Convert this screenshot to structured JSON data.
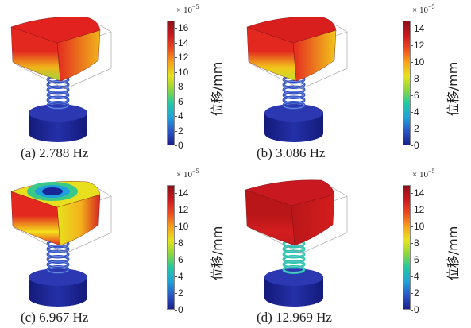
{
  "colorbar": {
    "scale_prefix": "× 10",
    "scale_exponent": "−5",
    "unit_label": "位移/mm",
    "gradient": [
      "#1a1f8c",
      "#2a57c6",
      "#1fa2d8",
      "#22c7a4",
      "#8ad640",
      "#e6e31e",
      "#f6a31b",
      "#ec4a1f",
      "#c91820",
      "#8e1119"
    ]
  },
  "panels": [
    {
      "caption": "(a) 2.788 Hz",
      "ticks": [
        "16",
        "14",
        "12",
        "10",
        "8",
        "6",
        "4",
        "2",
        "0"
      ],
      "tick_values": [
        16,
        14,
        12,
        10,
        8,
        6,
        4,
        2,
        0
      ],
      "range_max": 17,
      "mode": "tilt",
      "colors": {
        "top": "#e2221e",
        "side_top": "#e3291f",
        "side_mid": "#f0b51a",
        "side_bottom": "#9ad640",
        "spring": "#2f4fbf",
        "base": "#1a1f8c"
      }
    },
    {
      "caption": "(b) 3.086 Hz",
      "ticks": [
        "14",
        "12",
        "10",
        "8",
        "6",
        "4",
        "2",
        "0"
      ],
      "tick_values": [
        14,
        12,
        10,
        8,
        6,
        4,
        2,
        0
      ],
      "range_max": 15,
      "mode": "tilt",
      "colors": {
        "top": "#d81f1e",
        "side_top": "#e3291f",
        "side_mid": "#f2c61b",
        "side_bottom": "#c6df2a",
        "spring": "#2f4fbf",
        "base": "#1a1f8c"
      }
    },
    {
      "caption": "(c) 6.967 Hz",
      "ticks": [
        "14",
        "12",
        "10",
        "8",
        "6",
        "4",
        "2",
        "0"
      ],
      "tick_values": [
        14,
        12,
        10,
        8,
        6,
        4,
        2,
        0
      ],
      "range_max": 15,
      "mode": "twist",
      "colors": {
        "top": "#e6e31e",
        "side_top": "#e3291f",
        "side_mid": "#f5e21c",
        "side_bottom": "#e3291f",
        "spring": "#2f4fbf",
        "base": "#1a1f8c"
      }
    },
    {
      "caption": "(d) 12.969 Hz",
      "ticks": [
        "14",
        "12",
        "10",
        "8",
        "6",
        "4",
        "2",
        "0"
      ],
      "tick_values": [
        14,
        12,
        10,
        8,
        6,
        4,
        2,
        0
      ],
      "range_max": 15,
      "mode": "translate",
      "colors": {
        "top": "#c91820",
        "side_top": "#b91619",
        "side_mid": "#d41d1e",
        "side_bottom": "#c41a1d",
        "spring": "#22c7a4",
        "base": "#1a1f8c"
      }
    }
  ]
}
